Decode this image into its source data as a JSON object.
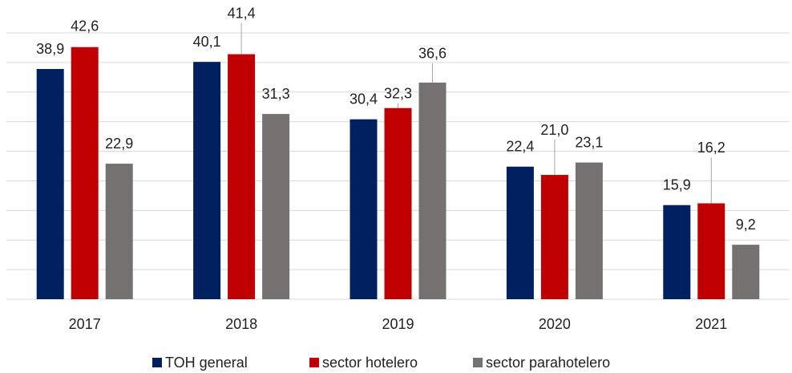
{
  "chart_data": {
    "type": "bar",
    "categories": [
      "2017",
      "2018",
      "2019",
      "2020",
      "2021"
    ],
    "series": [
      {
        "name": "TOH general",
        "color": "#002060",
        "values": [
          38.9,
          40.1,
          30.4,
          22.4,
          15.9
        ],
        "value_labels": [
          "38,9",
          "40,1",
          "30,4",
          "22,4",
          "15,9"
        ]
      },
      {
        "name": "sector hotelero",
        "color": "#c00000",
        "values": [
          42.6,
          41.4,
          32.3,
          21.0,
          16.2
        ],
        "value_labels": [
          "42,6",
          "41,4",
          "32,3",
          "21,0",
          "16,2"
        ]
      },
      {
        "name": "sector parahotelero",
        "color": "#767171",
        "values": [
          22.9,
          31.3,
          36.6,
          23.1,
          9.2
        ],
        "value_labels": [
          "22,9",
          "31,3",
          "36,6",
          "23,1",
          "9,2"
        ]
      }
    ],
    "ylim": [
      0,
      45
    ],
    "yticks": [
      0,
      5,
      10,
      15,
      20,
      25,
      30,
      35,
      40,
      45
    ],
    "grid": true,
    "legend": "bottom"
  }
}
